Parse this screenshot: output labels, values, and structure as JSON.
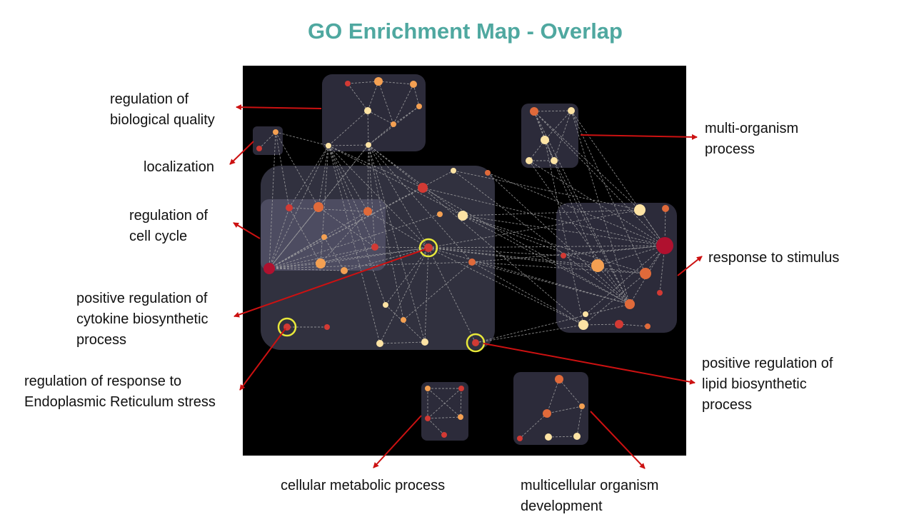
{
  "title": "GO Enrichment Map - Overlap",
  "colors": {
    "title": "#4fa8a0",
    "arrow": "#cc1111",
    "canvas_bg": "#000000",
    "cluster_bg": "#2c2b3a",
    "edge": "#aaaaaa",
    "highlight": "#e8e83a"
  },
  "labels": {
    "biological_quality": [
      "regulation of",
      "biological quality"
    ],
    "localization": [
      "localization"
    ],
    "cell_cycle": [
      "regulation of",
      "cell cycle"
    ],
    "cytokine": [
      "positive regulation of",
      "cytokine biosynthetic",
      "process"
    ],
    "er_stress": [
      "regulation of response to",
      "Endoplasmic Reticulum stress"
    ],
    "cellular_metabolic": [
      "cellular metabolic process"
    ],
    "multicellular": [
      "multicellular organism",
      "development"
    ],
    "lipid": [
      "positive regulation of",
      "lipid biosynthetic",
      "process"
    ],
    "stimulus": [
      "response to stimulus"
    ],
    "multi_organism": [
      "multi-organism",
      "process"
    ]
  }
}
